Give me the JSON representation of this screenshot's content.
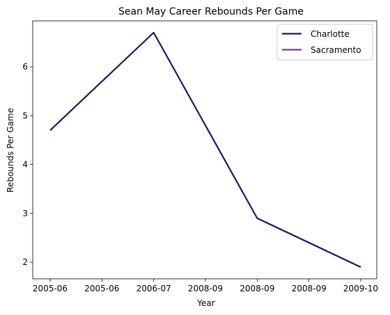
{
  "chart_data": {
    "type": "line",
    "title": "Sean May Career Rebounds Per Game",
    "xlabel": "Year",
    "ylabel": "Rebounds Per Game",
    "x_tick_labels": [
      "2005-06",
      "2005-06",
      "2006-07",
      "2008-09",
      "2008-09",
      "2008-09",
      "2009-10"
    ],
    "y_ticks": [
      2,
      3,
      4,
      5,
      6
    ],
    "ylim": [
      1.66,
      6.94
    ],
    "legend_position": "top-right",
    "grid": false,
    "series": [
      {
        "name": "Charlotte",
        "color": "#1f1463",
        "x_index": [
          0,
          2,
          4,
          6
        ],
        "values": [
          4.7,
          6.7,
          2.9,
          1.9
        ]
      },
      {
        "name": "Sacramento",
        "color": "#6b3d8f",
        "x_index": [],
        "values": []
      }
    ]
  }
}
